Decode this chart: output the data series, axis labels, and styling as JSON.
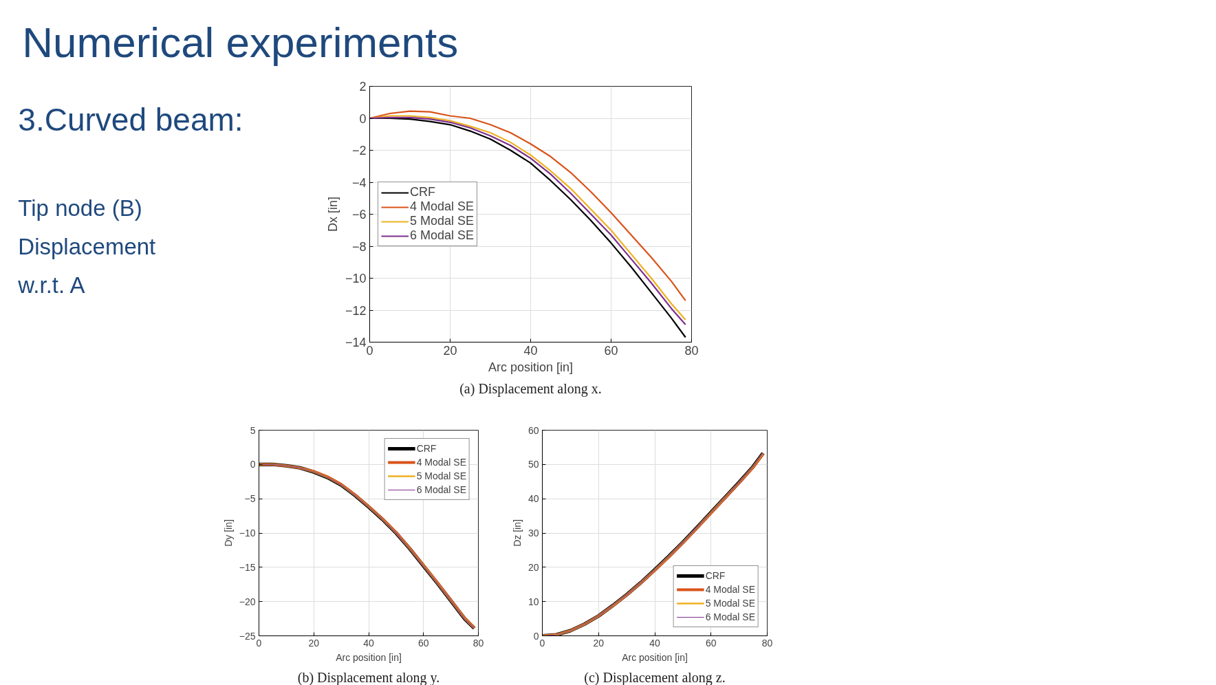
{
  "chart_data": [
    {
      "type": "other",
      "title": "Numerical experiments",
      "annotations": [
        "3.Curved beam:",
        "Tip node (B)",
        "Displacement",
        "w.r.t. A"
      ]
    },
    {
      "type": "line",
      "xlabel": "Arc position [in]",
      "ylabel": "Dx [in]",
      "annotations": [
        "(a) Displacement along x."
      ],
      "xlim": [
        0,
        80
      ],
      "ylim": [
        -14,
        2
      ],
      "xticks": [
        0,
        20,
        40,
        60,
        80
      ],
      "yticks": [
        -14,
        -12,
        -10,
        -8,
        -6,
        -4,
        -2,
        0,
        2
      ],
      "grid": true,
      "legend": "left",
      "x": [
        0,
        5,
        10,
        15,
        20,
        25,
        30,
        35,
        40,
        45,
        50,
        55,
        60,
        65,
        70,
        75,
        78.5
      ],
      "series": [
        {
          "name": "CRF",
          "color": "#000000",
          "values": [
            0,
            0,
            -0.05,
            -0.2,
            -0.4,
            -0.8,
            -1.3,
            -2.0,
            -2.8,
            -3.9,
            -5.1,
            -6.4,
            -7.8,
            -9.3,
            -10.9,
            -12.5,
            -13.7
          ]
        },
        {
          "name": "4 Modal SE",
          "color": "#d95319",
          "values": [
            0,
            0.3,
            0.45,
            0.4,
            0.15,
            0,
            -0.4,
            -0.9,
            -1.6,
            -2.4,
            -3.4,
            -4.6,
            -5.9,
            -7.3,
            -8.7,
            -10.2,
            -11.4
          ]
        },
        {
          "name": "5 Modal SE",
          "color": "#edb120",
          "values": [
            0,
            0.15,
            0.15,
            0.05,
            -0.15,
            -0.5,
            -0.9,
            -1.5,
            -2.3,
            -3.3,
            -4.4,
            -5.7,
            -7.0,
            -8.5,
            -10.0,
            -11.6,
            -12.6
          ]
        },
        {
          "name": "6 Modal SE",
          "color": "#7e2f8e",
          "values": [
            0,
            0.05,
            0.05,
            -0.05,
            -0.25,
            -0.6,
            -1.1,
            -1.7,
            -2.5,
            -3.5,
            -4.7,
            -6.0,
            -7.3,
            -8.8,
            -10.3,
            -11.9,
            -12.9
          ]
        }
      ]
    },
    {
      "type": "line",
      "xlabel": "Arc position [in]",
      "ylabel": "Dy [in]",
      "annotations": [
        "(b) Displacement along y."
      ],
      "xlim": [
        0,
        80
      ],
      "ylim": [
        -25,
        5
      ],
      "xticks": [
        0,
        20,
        40,
        60,
        80
      ],
      "yticks": [
        -25,
        -20,
        -15,
        -10,
        -5,
        0,
        5
      ],
      "grid": true,
      "legend": "top right",
      "x": [
        0,
        5,
        10,
        15,
        20,
        25,
        30,
        35,
        40,
        45,
        50,
        55,
        60,
        65,
        70,
        75,
        78.5
      ],
      "series": [
        {
          "name": "CRF",
          "color": "#000000",
          "values": [
            0,
            0,
            -0.2,
            -0.5,
            -1.1,
            -1.9,
            -3.0,
            -4.5,
            -6.2,
            -8.0,
            -10.0,
            -12.3,
            -14.8,
            -17.3,
            -19.9,
            -22.5,
            -23.9
          ]
        },
        {
          "name": "4 Modal SE",
          "color": "#d95319",
          "values": [
            0,
            0,
            -0.2,
            -0.5,
            -1.0,
            -1.8,
            -2.9,
            -4.4,
            -6.1,
            -7.9,
            -9.9,
            -12.2,
            -14.7,
            -17.2,
            -19.8,
            -22.4,
            -23.8
          ]
        },
        {
          "name": "5 Modal SE",
          "color": "#edb120",
          "values": [
            0,
            0,
            -0.2,
            -0.5,
            -1.1,
            -1.9,
            -3.0,
            -4.5,
            -6.2,
            -8.0,
            -10.0,
            -12.3,
            -14.8,
            -17.3,
            -19.9,
            -22.5,
            -23.9
          ]
        },
        {
          "name": "6 Modal SE",
          "color": "#7e2f8e",
          "values": [
            0,
            0,
            -0.2,
            -0.5,
            -1.1,
            -1.9,
            -3.0,
            -4.5,
            -6.2,
            -8.0,
            -10.0,
            -12.3,
            -14.8,
            -17.3,
            -19.9,
            -22.5,
            -23.9
          ]
        }
      ]
    },
    {
      "type": "line",
      "xlabel": "Arc position [in]",
      "ylabel": "Dz [in]",
      "annotations": [
        "(c) Displacement along z."
      ],
      "xlim": [
        0,
        80
      ],
      "ylim": [
        0,
        60
      ],
      "xticks": [
        0,
        20,
        40,
        60,
        80
      ],
      "yticks": [
        0,
        10,
        20,
        30,
        40,
        50,
        60
      ],
      "grid": true,
      "legend": "bottom right",
      "x": [
        0,
        5,
        10,
        15,
        20,
        25,
        30,
        35,
        40,
        45,
        50,
        55,
        60,
        65,
        70,
        75,
        78.5
      ],
      "series": [
        {
          "name": "CRF",
          "color": "#000000",
          "values": [
            0,
            0.3,
            1.5,
            3.4,
            5.8,
            8.8,
            12.0,
            15.5,
            19.3,
            23.2,
            27.3,
            31.6,
            36.0,
            40.4,
            44.8,
            49.4,
            53.3
          ]
        },
        {
          "name": "4 Modal SE",
          "color": "#d95319",
          "values": [
            0,
            0.3,
            1.5,
            3.4,
            5.8,
            8.7,
            11.9,
            15.4,
            19.1,
            23.0,
            27.1,
            31.4,
            35.8,
            40.2,
            44.6,
            49.1,
            53.0
          ]
        },
        {
          "name": "5 Modal SE",
          "color": "#edb120",
          "values": [
            0,
            0.3,
            1.5,
            3.4,
            5.8,
            8.8,
            12.0,
            15.5,
            19.3,
            23.2,
            27.3,
            31.6,
            36.0,
            40.4,
            44.8,
            49.4,
            53.3
          ]
        },
        {
          "name": "6 Modal SE",
          "color": "#7e2f8e",
          "values": [
            0,
            0.3,
            1.5,
            3.4,
            5.8,
            8.8,
            12.0,
            15.5,
            19.3,
            23.2,
            27.3,
            31.6,
            36.0,
            40.4,
            44.8,
            49.4,
            53.4
          ]
        }
      ]
    }
  ]
}
